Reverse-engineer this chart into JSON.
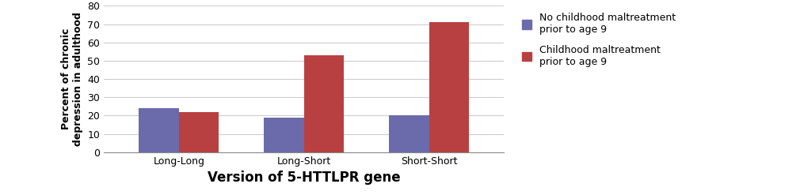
{
  "categories": [
    "Long-Long",
    "Long-Short",
    "Short-Short"
  ],
  "no_maltreatment": [
    24,
    19,
    20
  ],
  "maltreatment": [
    22,
    53,
    71
  ],
  "bar_color_no": "#6b6bab",
  "bar_color_yes": "#b94040",
  "xlabel": "Version of 5-HTTLPR gene",
  "ylabel": "Percent of chronic\ndepression in adulthood",
  "ylim": [
    0,
    80
  ],
  "yticks": [
    0,
    10,
    20,
    30,
    40,
    50,
    60,
    70,
    80
  ],
  "legend_no": "No childhood maltreatment\nprior to age 9",
  "legend_yes": "Childhood maltreatment\nprior to age 9",
  "bar_width": 0.32,
  "background_color": "#ffffff",
  "grid_color": "#cccccc",
  "xlabel_fontsize": 12,
  "ylabel_fontsize": 9,
  "tick_fontsize": 9,
  "legend_fontsize": 9
}
